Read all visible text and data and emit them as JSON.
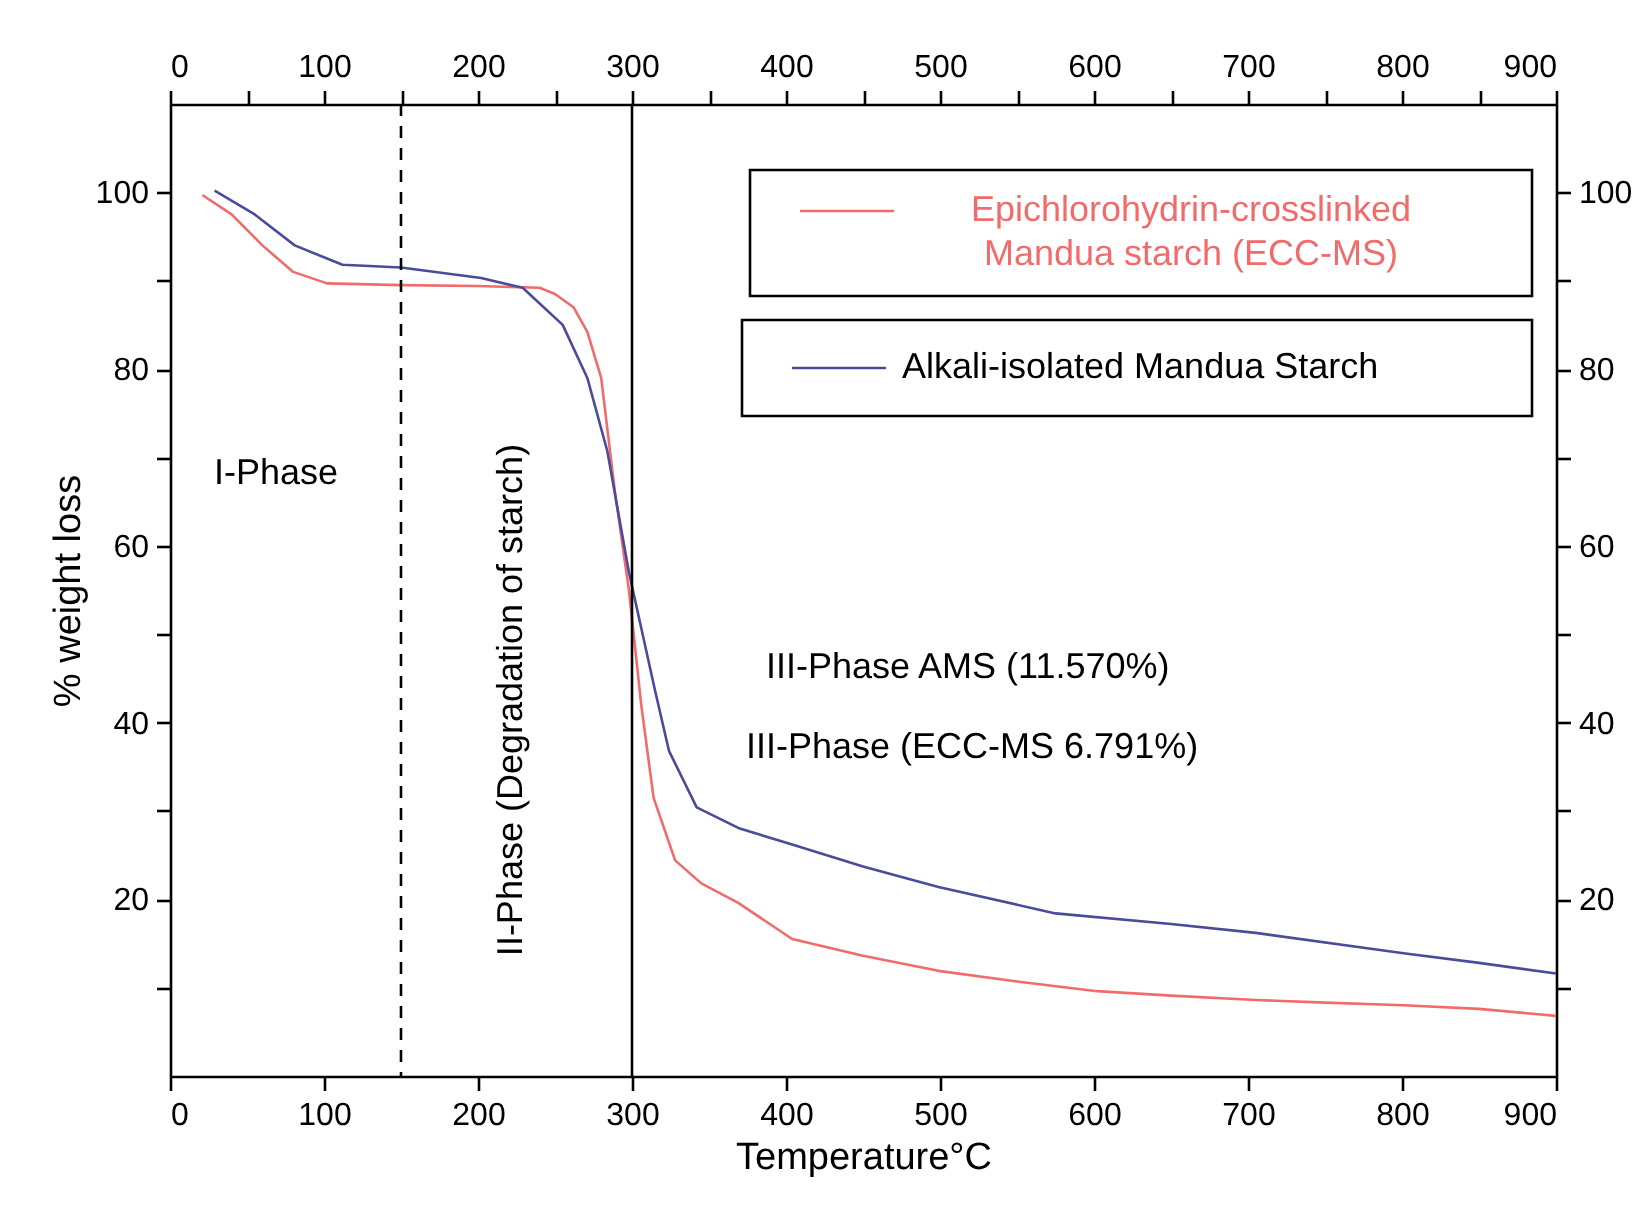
{
  "chart_data": {
    "type": "line",
    "xlabel": "Temperature°C",
    "ylabel": "% weight loss",
    "xlim": [
      0,
      900
    ],
    "xticks": [
      0,
      {
        "value": 50,
        "label": null
      },
      100,
      {
        "value": 150,
        "label": null
      },
      200,
      {
        "value": 250,
        "label": null
      },
      300,
      {
        "value": 350,
        "label": null
      },
      400,
      {
        "value": 450,
        "label": null
      },
      500,
      {
        "value": 550,
        "label": null
      },
      600,
      {
        "value": 650,
        "label": null
      },
      700,
      {
        "value": 750,
        "label": null
      },
      800,
      {
        "value": 850,
        "label": null
      },
      900
    ],
    "x2lim": [
      0,
      900
    ],
    "x2ticks": [
      0,
      {
        "value": 50,
        "label": null
      },
      100,
      {
        "value": 150,
        "label": null
      },
      200,
      {
        "value": 250,
        "label": null
      },
      300,
      {
        "value": 350,
        "label": null
      },
      400,
      {
        "value": 450,
        "label": null
      },
      500,
      {
        "value": 550,
        "label": null
      },
      600,
      {
        "value": 650,
        "label": null
      },
      700,
      {
        "value": 750,
        "label": null
      },
      800,
      {
        "value": 850,
        "label": null
      },
      900
    ],
    "ylim": [
      0,
      110
    ],
    "yticks": [
      {
        "value": 10,
        "label": null
      },
      20,
      {
        "value": 30,
        "label": null
      },
      40,
      {
        "value": 50,
        "label": null
      },
      60,
      {
        "value": 70,
        "label": null
      },
      80,
      {
        "value": 90,
        "label": null
      },
      100
    ],
    "y2lim": [
      0,
      110
    ],
    "y2ticks": [
      {
        "value": 10,
        "label": null
      },
      20,
      {
        "value": 30,
        "label": null
      },
      40,
      {
        "value": 50,
        "label": null
      },
      60,
      {
        "value": 70,
        "label": null
      },
      80,
      {
        "value": 90,
        "label": null
      },
      100
    ],
    "legend": "top right",
    "marker": "none",
    "line_style": "solid",
    "series": [
      {
        "name": "Epichlorohydrin-crosslinked\nMandua starch (ECC-MS)",
        "color": "#f26b6b",
        "x": [
          21,
          40,
          60,
          80,
          102,
          150,
          200,
          240,
          250,
          262,
          271,
          280,
          289,
          298,
          306,
          314,
          328,
          345,
          369,
          404,
          450,
          499,
          550,
          602,
          650,
          705,
          750,
          801,
          850,
          900
        ],
        "values": [
          99.7,
          97.5,
          94.0,
          91.0,
          89.7,
          89.5,
          89.4,
          89.2,
          88.5,
          87.0,
          84.2,
          79.0,
          66.0,
          55.0,
          42.0,
          31.5,
          24.4,
          21.8,
          19.6,
          15.5,
          13.6,
          11.9,
          10.7,
          9.6,
          9.1,
          8.6,
          8.3,
          8.0,
          7.6,
          6.8
        ]
      },
      {
        "name": "Alkali-isolated Mandua Starch",
        "color": "#4b4b9c",
        "x": [
          29,
          55,
          81,
          112,
          150,
          202,
          229,
          255,
          271,
          284,
          298,
          315,
          324,
          342,
          370,
          404,
          450,
          499,
          575,
          650,
          705,
          801,
          850,
          900
        ],
        "values": [
          100.2,
          97.5,
          94.0,
          91.8,
          91.5,
          90.3,
          89.2,
          85.0,
          79.0,
          70.7,
          57.0,
          43.6,
          36.8,
          30.4,
          28.0,
          26.2,
          23.7,
          21.4,
          18.4,
          17.2,
          16.2,
          13.9,
          12.8,
          11.6
        ]
      }
    ],
    "ref_lines": [
      {
        "axis": "x",
        "value": 150,
        "color": "#000000",
        "line_style": "dashed"
      },
      {
        "axis": "x",
        "value": 300,
        "color": "#000000",
        "line_style": "solid"
      }
    ],
    "annotations": [
      "I-Phase",
      "II-Phase (Degradation of starch)",
      "III-Phase AMS (11.570%)",
      "III-Phase (ECC-MS 6.791%)"
    ]
  }
}
